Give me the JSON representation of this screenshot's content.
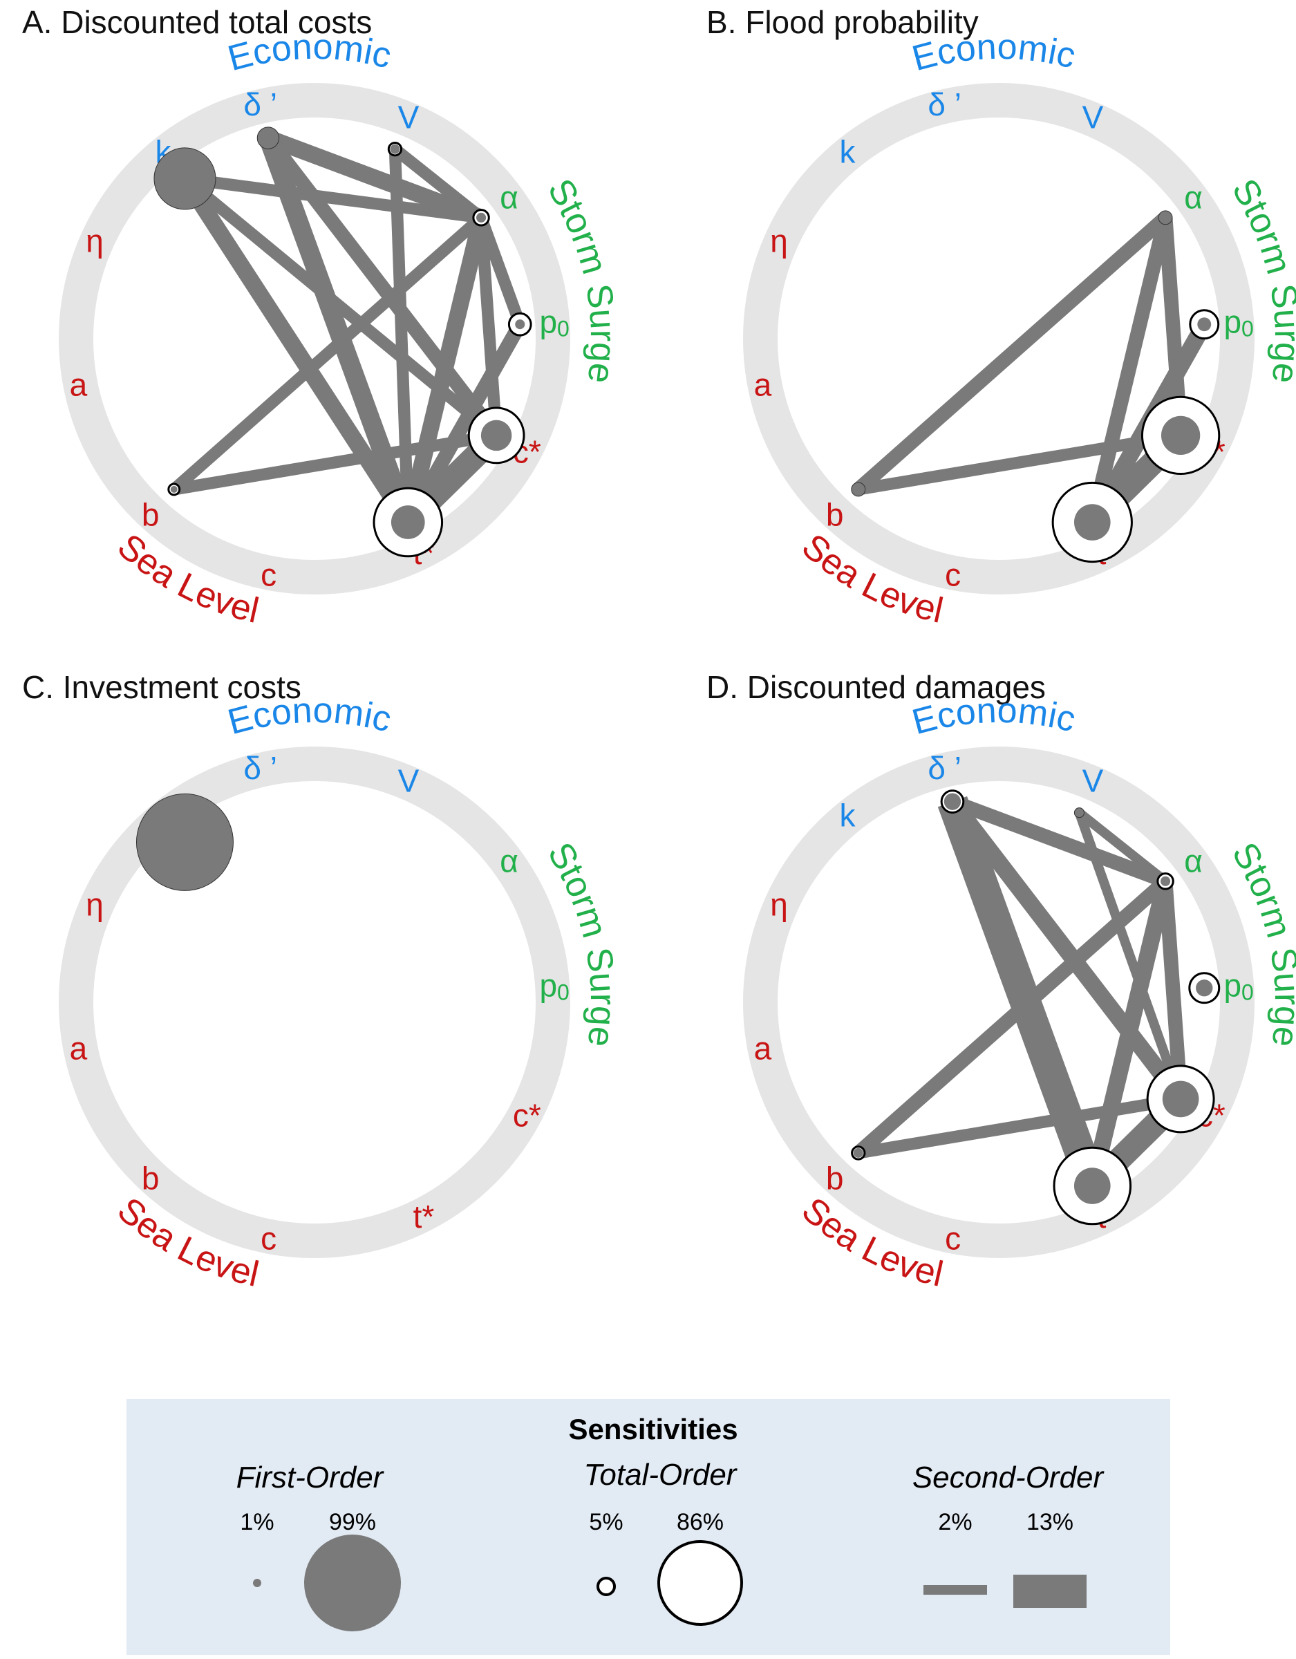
{
  "colors": {
    "economic": "#1a87e8",
    "storm_surge": "#22b04b",
    "sea_level": "#c81414",
    "ring": "#e5e5e5",
    "edge": "#7a7a7a",
    "first_order": "#7a7a7a",
    "legend_bg": "#e2eaf3"
  },
  "groups": {
    "economic": "Economic",
    "storm_surge": "Storm Surge",
    "sea_level": "Sea Level"
  },
  "parameters": [
    {
      "id": "delta",
      "label": "δ ’",
      "group": "economic"
    },
    {
      "id": "V",
      "label": "V",
      "group": "economic"
    },
    {
      "id": "alpha",
      "label": "α",
      "group": "storm_surge"
    },
    {
      "id": "p0",
      "label": "p",
      "sub": "0",
      "group": "storm_surge"
    },
    {
      "id": "cstar",
      "label": "c*",
      "group": "sea_level"
    },
    {
      "id": "tstar",
      "label": "t*",
      "group": "sea_level"
    },
    {
      "id": "c",
      "label": "c",
      "group": "sea_level"
    },
    {
      "id": "b",
      "label": "b",
      "group": "sea_level"
    },
    {
      "id": "a",
      "label": "a",
      "group": "sea_level"
    },
    {
      "id": "eta",
      "label": "η",
      "group": "sea_level"
    },
    {
      "id": "k",
      "label": "k",
      "group": "economic"
    }
  ],
  "panels": [
    {
      "title": "A. Discounted total costs",
      "nodes": [
        {
          "id": "k",
          "first": 0.4,
          "total": 0.4
        },
        {
          "id": "delta",
          "first": 0.05,
          "total": 0.05
        },
        {
          "id": "V",
          "first": 0.01,
          "total": 0.02
        },
        {
          "id": "alpha",
          "first": 0.01,
          "total": 0.03
        },
        {
          "id": "p0",
          "first": 0.01,
          "total": 0.06
        },
        {
          "id": "cstar",
          "first": 0.1,
          "total": 0.38
        },
        {
          "id": "tstar",
          "first": 0.12,
          "total": 0.58
        },
        {
          "id": "b",
          "first": 0.005,
          "total": 0.015
        }
      ],
      "edges": [
        {
          "from": "k",
          "to": "alpha",
          "value": 0.05
        },
        {
          "from": "k",
          "to": "cstar",
          "value": 0.05
        },
        {
          "from": "k",
          "to": "tstar",
          "value": 0.07
        },
        {
          "from": "delta",
          "to": "alpha",
          "value": 0.07
        },
        {
          "from": "delta",
          "to": "cstar",
          "value": 0.06
        },
        {
          "from": "delta",
          "to": "tstar",
          "value": 0.08
        },
        {
          "from": "V",
          "to": "alpha",
          "value": 0.05
        },
        {
          "from": "V",
          "to": "tstar",
          "value": 0.05
        },
        {
          "from": "alpha",
          "to": "p0",
          "value": 0.05
        },
        {
          "from": "alpha",
          "to": "cstar",
          "value": 0.05
        },
        {
          "from": "alpha",
          "to": "tstar",
          "value": 0.07
        },
        {
          "from": "alpha",
          "to": "b",
          "value": 0.05
        },
        {
          "from": "p0",
          "to": "tstar",
          "value": 0.06
        },
        {
          "from": "cstar",
          "to": "tstar",
          "value": 0.1
        },
        {
          "from": "b",
          "to": "cstar",
          "value": 0.05
        }
      ]
    },
    {
      "title": "B. Flood probability",
      "nodes": [
        {
          "id": "alpha",
          "first": 0.02,
          "total": 0.02
        },
        {
          "id": "p0",
          "first": 0.02,
          "total": 0.1
        },
        {
          "id": "cstar",
          "first": 0.16,
          "total": 0.74
        },
        {
          "id": "tstar",
          "first": 0.14,
          "total": 0.78
        },
        {
          "id": "b",
          "first": 0.02,
          "total": 0.02
        }
      ],
      "edges": [
        {
          "from": "alpha",
          "to": "b",
          "value": 0.06
        },
        {
          "from": "alpha",
          "to": "cstar",
          "value": 0.06
        },
        {
          "from": "alpha",
          "to": "tstar",
          "value": 0.06
        },
        {
          "from": "p0",
          "to": "tstar",
          "value": 0.07
        },
        {
          "from": "cstar",
          "to": "tstar",
          "value": 0.1
        },
        {
          "from": "b",
          "to": "cstar",
          "value": 0.05
        }
      ]
    },
    {
      "title": "C. Investment costs",
      "nodes": [
        {
          "id": "k",
          "first": 0.99,
          "total": 0.99
        }
      ],
      "edges": []
    },
    {
      "title": "D. Discounted damages",
      "nodes": [
        {
          "id": "delta",
          "first": 0.03,
          "total": 0.06
        },
        {
          "id": "V",
          "first": 0.01,
          "total": 0.01
        },
        {
          "id": "alpha",
          "first": 0.01,
          "total": 0.03
        },
        {
          "id": "p0",
          "first": 0.03,
          "total": 0.11
        },
        {
          "id": "cstar",
          "first": 0.14,
          "total": 0.55
        },
        {
          "id": "tstar",
          "first": 0.14,
          "total": 0.73
        },
        {
          "id": "b",
          "first": 0.01,
          "total": 0.02
        }
      ],
      "edges": [
        {
          "from": "delta",
          "to": "alpha",
          "value": 0.06
        },
        {
          "from": "delta",
          "to": "cstar",
          "value": 0.07
        },
        {
          "from": "delta",
          "to": "tstar",
          "value": 0.13
        },
        {
          "from": "V",
          "to": "alpha",
          "value": 0.04
        },
        {
          "from": "V",
          "to": "cstar",
          "value": 0.04
        },
        {
          "from": "alpha",
          "to": "b",
          "value": 0.06
        },
        {
          "from": "alpha",
          "to": "cstar",
          "value": 0.06
        },
        {
          "from": "alpha",
          "to": "tstar",
          "value": 0.07
        },
        {
          "from": "cstar",
          "to": "tstar",
          "value": 0.1
        },
        {
          "from": "b",
          "to": "cstar",
          "value": 0.05
        }
      ]
    }
  ],
  "legend": {
    "title": "Sensitivities",
    "first_order": {
      "label": "First-Order",
      "min_label": "1%",
      "max_label": "99%",
      "min": 0.01,
      "max": 0.99
    },
    "total_order": {
      "label": "Total-Order",
      "min_label": "5%",
      "max_label": "86%",
      "min": 0.05,
      "max": 0.86
    },
    "second_order": {
      "label": "Second-Order",
      "min_label": "2%",
      "max_label": "13%",
      "min": 0.02,
      "max": 0.13
    }
  }
}
